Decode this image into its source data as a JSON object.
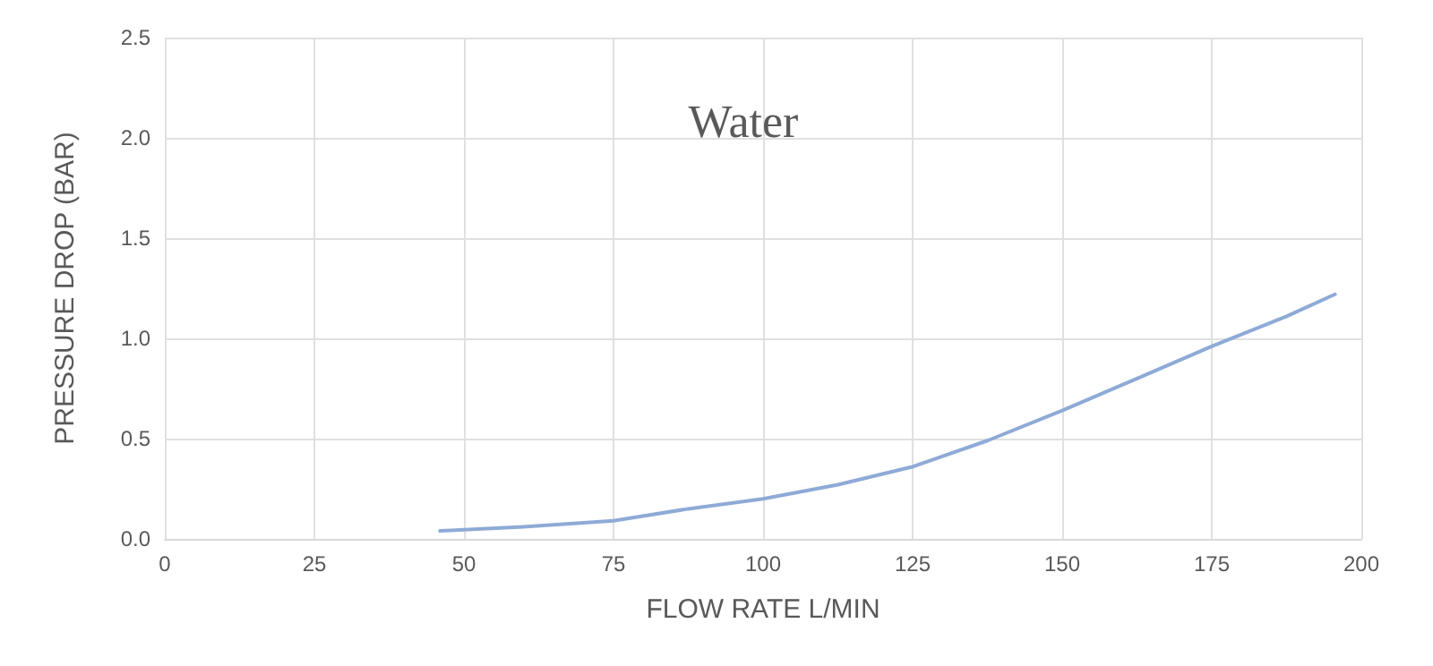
{
  "chart_data": {
    "type": "line",
    "title": "Water",
    "xlabel": "FLOW RATE L/MIN",
    "ylabel": "PRESSURE DROP (BAR)",
    "x": [
      46,
      60,
      75,
      87.5,
      100,
      112.5,
      125,
      137.5,
      150,
      162.5,
      175,
      187.5,
      195.6
    ],
    "series": [
      {
        "color": "#8eaad6",
        "values": [
          0.04,
          0.06,
          0.09,
          0.15,
          0.2,
          0.27,
          0.36,
          0.49,
          0.64,
          0.8,
          0.96,
          1.11,
          1.22
        ]
      }
    ],
    "xlim": [
      0,
      200
    ],
    "xticks": [
      0,
      25,
      50,
      75,
      100,
      125,
      150,
      175,
      200
    ],
    "ylim": [
      0,
      2.5
    ],
    "yticks": [
      {
        "value": 0,
        "label": "0.0"
      },
      {
        "value": 0.5,
        "label": "0.5"
      },
      {
        "value": 1,
        "label": "1.0"
      },
      {
        "value": 1.5,
        "label": "1.5"
      },
      {
        "value": 2,
        "label": "2.0"
      },
      {
        "value": 2.5,
        "label": "2.5"
      }
    ],
    "grid": true,
    "marker": "none"
  }
}
